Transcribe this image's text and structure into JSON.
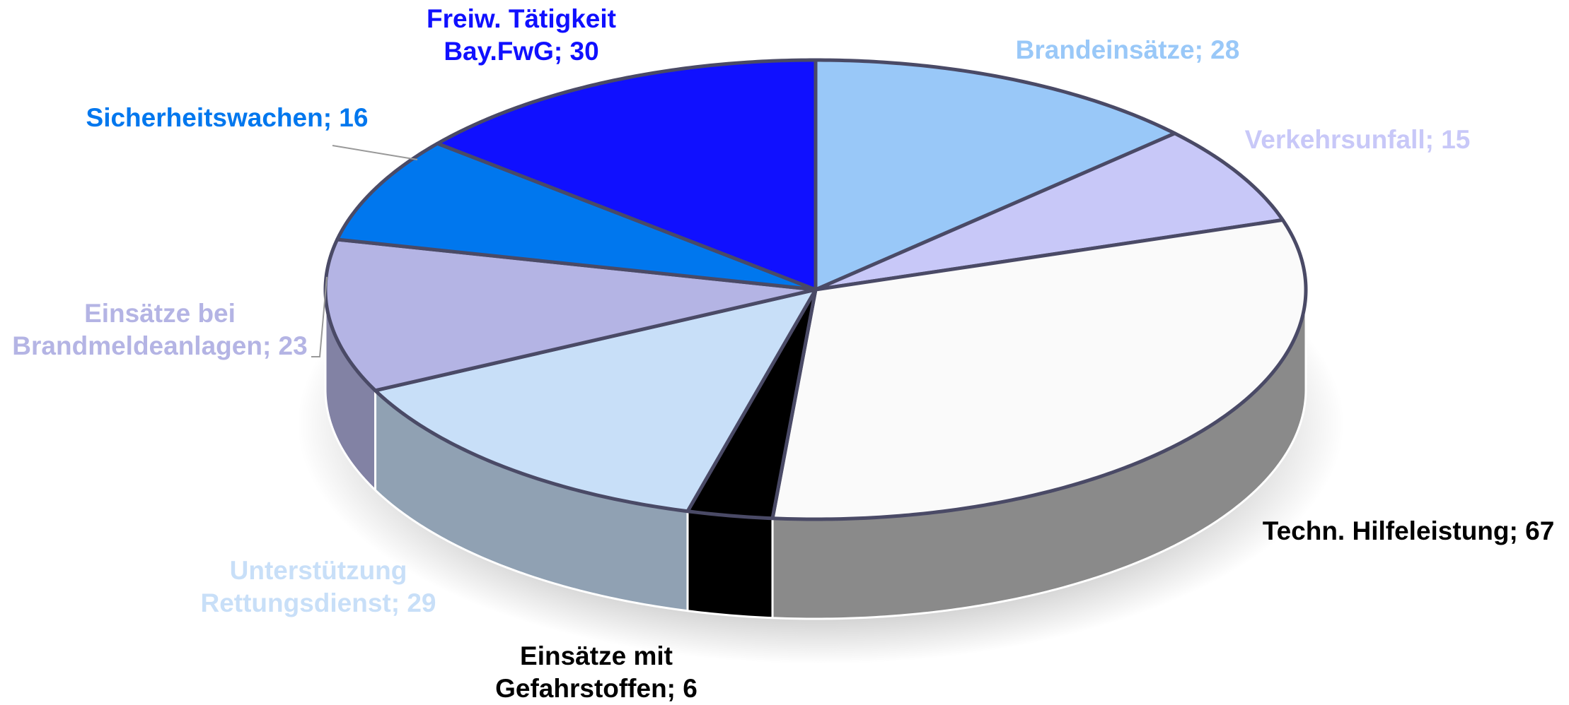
{
  "chart_data": {
    "type": "pie3d",
    "values": [
      28,
      15,
      67,
      6,
      29,
      23,
      16,
      30
    ],
    "value_labels": [
      "Brandeinsätze; 28",
      "Verkehrsunfall; 15",
      "Techn. Hilfeleistung; 67",
      "Einsätze mit Gefahrstoffen; 6",
      "Unterstützung Rettungsdienst; 29",
      "Einsätze bei Brandmeldeanlagen; 23",
      "Sicherheitswachen; 16",
      "Freiw. Tätigkeit Bay.FwG; 30"
    ],
    "colors": [
      "#99c8f8",
      "#c8c8f8",
      "#fafafa",
      "#000000",
      "#c8dff8",
      "#b4b4e4",
      "#0077ee",
      "#1010ff"
    ],
    "label_colors": [
      "#99c8f8",
      "#c8c8f8",
      "#000000",
      "#000000",
      "#c8dff8",
      "#b4b4e4",
      "#0077ee",
      "#1010ff"
    ]
  }
}
